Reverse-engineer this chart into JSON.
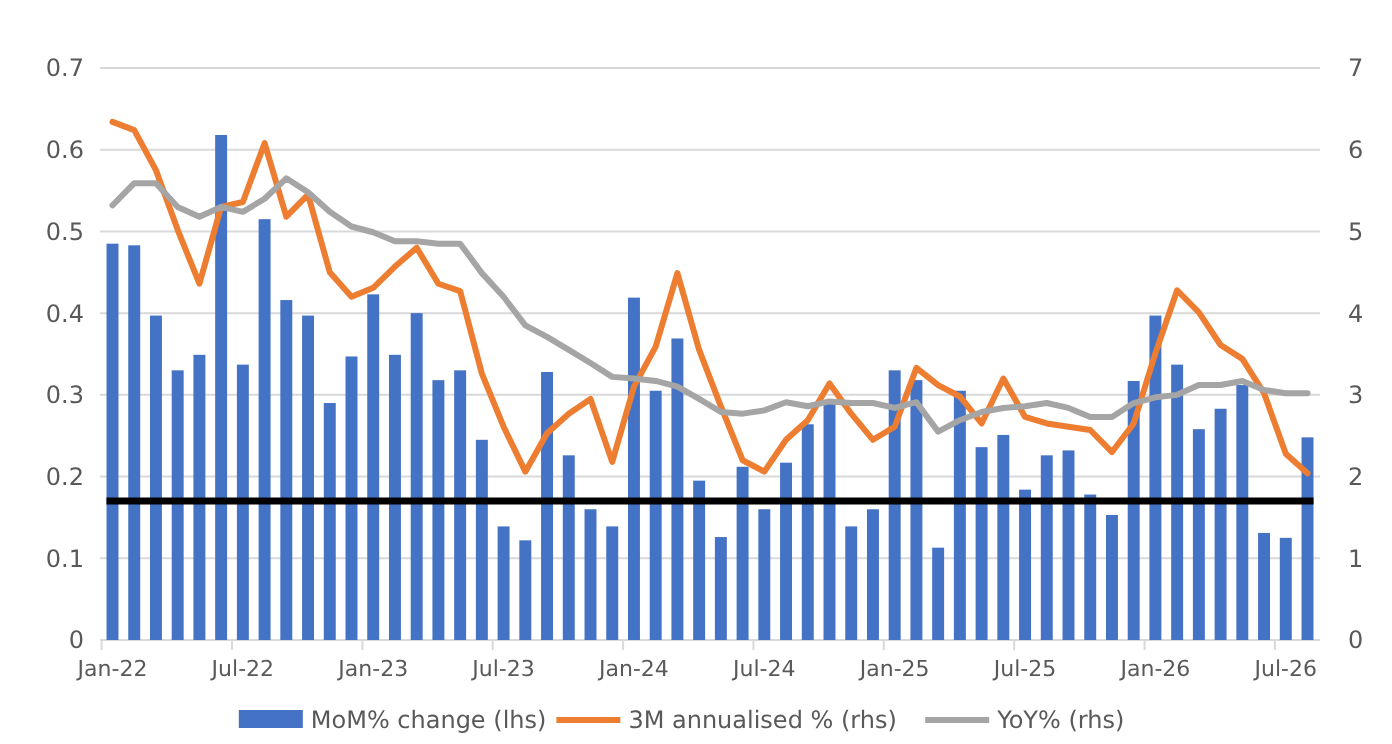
{
  "chart_data": {
    "type": "bar",
    "categories": [
      "Jan-22",
      null,
      null,
      null,
      null,
      null,
      "Jul-22",
      null,
      null,
      null,
      null,
      null,
      "Jan-23",
      null,
      null,
      null,
      null,
      null,
      "Jul-23",
      null,
      null,
      null,
      null,
      null,
      "Jan-24",
      null,
      null,
      null,
      null,
      null,
      "Jul-24",
      null,
      null,
      null,
      null,
      null,
      "Jan-25",
      null,
      null,
      null,
      null,
      null,
      "Jul-25",
      null,
      null,
      null,
      null,
      null,
      "Jan-26",
      null,
      null,
      null,
      null,
      null,
      "Jul-26",
      null
    ],
    "series": [
      {
        "name": "MoM% change (lhs)",
        "color": "#4472c4",
        "values": [
          0.485,
          0.483,
          0.397,
          0.33,
          0.349,
          0.618,
          0.337,
          0.515,
          0.416,
          0.397,
          0.29,
          0.347,
          0.423,
          0.349,
          0.4,
          0.318,
          0.33,
          0.245,
          0.139,
          0.122,
          0.328,
          0.226,
          0.16,
          0.139,
          0.419,
          0.305,
          0.369,
          0.195,
          0.126,
          0.212,
          0.16,
          0.217,
          0.264,
          0.289,
          0.139,
          0.16,
          0.33,
          0.318,
          0.113,
          0.305,
          0.236,
          0.251,
          0.184,
          0.226,
          0.232,
          0.178,
          0.153,
          0.317,
          0.397,
          0.337,
          0.258,
          0.283,
          0.312,
          0.131,
          0.125,
          0.248
        ]
      },
      {
        "name": "3M annualised % (rhs)",
        "type": "line",
        "axis": "y2",
        "color": "#ed7d31",
        "values": [
          6.34,
          6.24,
          5.75,
          5.02,
          4.36,
          5.3,
          5.36,
          6.08,
          5.18,
          5.45,
          4.5,
          4.2,
          4.31,
          4.57,
          4.8,
          4.36,
          4.27,
          3.26,
          2.61,
          2.06,
          2.53,
          2.77,
          2.95,
          2.18,
          3.1,
          3.59,
          4.49,
          3.55,
          2.86,
          2.2,
          2.06,
          2.45,
          2.69,
          3.14,
          2.77,
          2.45,
          2.61,
          3.33,
          3.12,
          2.98,
          2.65,
          3.2,
          2.73,
          2.65,
          2.61,
          2.57,
          2.3,
          2.65,
          3.51,
          4.28,
          4.01,
          3.61,
          3.44,
          3.02,
          2.28,
          2.04
        ]
      },
      {
        "name": "YoY% (rhs)",
        "type": "line",
        "axis": "y2",
        "color": "#a5a5a5",
        "values": [
          5.32,
          5.59,
          5.59,
          5.3,
          5.18,
          5.3,
          5.24,
          5.4,
          5.65,
          5.48,
          5.24,
          5.06,
          4.99,
          4.88,
          4.88,
          4.85,
          4.85,
          4.49,
          4.2,
          3.85,
          3.71,
          3.55,
          3.39,
          3.22,
          3.2,
          3.17,
          3.1,
          2.95,
          2.79,
          2.77,
          2.81,
          2.91,
          2.86,
          2.92,
          2.9,
          2.9,
          2.84,
          2.91,
          2.55,
          2.69,
          2.79,
          2.84,
          2.86,
          2.9,
          2.84,
          2.73,
          2.73,
          2.9,
          2.97,
          3.0,
          3.12,
          3.12,
          3.17,
          3.06,
          3.02,
          3.02
        ]
      }
    ],
    "ylim": [
      0,
      0.7
    ],
    "yticks": [
      0,
      0.1,
      0.2,
      0.3,
      0.4,
      0.5,
      0.6,
      0.7
    ],
    "y2lim": [
      0,
      7
    ],
    "y2ticks": [
      0,
      1,
      2,
      3,
      4,
      5,
      6,
      7
    ],
    "ref_lines": [
      {
        "axis": "y",
        "value": 0.17,
        "color": "#000000"
      }
    ],
    "grid": "y",
    "legend": "bottom",
    "marker": "none",
    "line_style": "solid"
  }
}
